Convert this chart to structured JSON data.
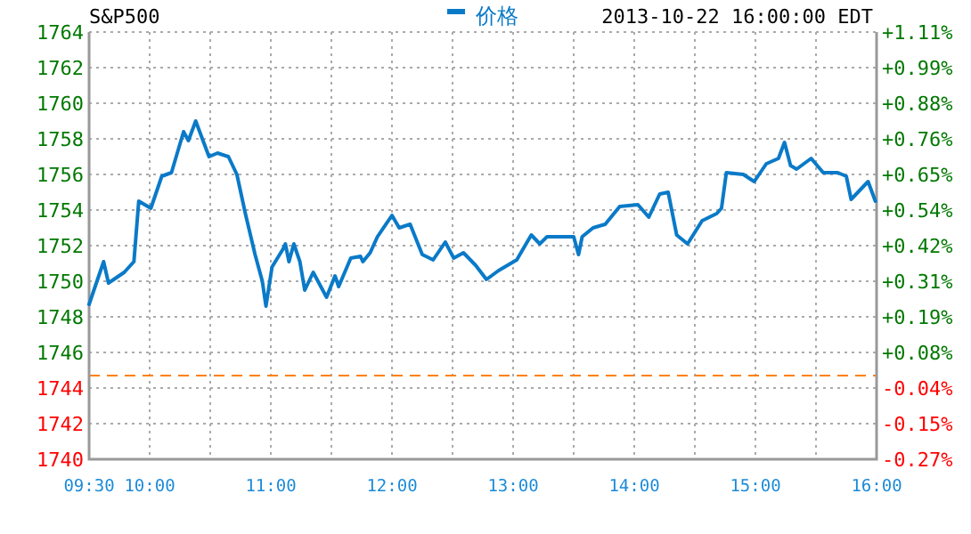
{
  "chart_data": {
    "type": "line",
    "title": "S&P500",
    "subtitle": "2013-10-22 16:00:00 EDT",
    "x": [
      9.5,
      9.62,
      9.66,
      9.79,
      9.87,
      9.91,
      10.01,
      10.1,
      10.18,
      10.28,
      10.32,
      10.38,
      10.49,
      10.56,
      10.65,
      10.72,
      10.79,
      10.87,
      10.93,
      10.96,
      11.01,
      11.1,
      11.12,
      11.15,
      11.19,
      11.24,
      11.28,
      11.35,
      11.46,
      11.53,
      11.56,
      11.66,
      11.74,
      11.76,
      11.82,
      11.88,
      12.0,
      12.06,
      12.15,
      12.25,
      12.34,
      12.44,
      12.51,
      12.59,
      12.69,
      12.78,
      12.88,
      13.03,
      13.15,
      13.22,
      13.28,
      13.5,
      13.54,
      13.57,
      13.66,
      13.76,
      13.88,
      14.03,
      14.12,
      14.21,
      14.28,
      14.35,
      14.44,
      14.56,
      14.68,
      14.72,
      14.76,
      14.9,
      14.99,
      15.09,
      15.19,
      15.24,
      15.29,
      15.34,
      15.46,
      15.56,
      15.68,
      15.75,
      15.79,
      15.93,
      15.99
    ],
    "series": [
      {
        "name": "价格",
        "color": "#0a7ac8",
        "values": [
          1748.7,
          1751.1,
          1749.9,
          1750.5,
          1751.1,
          1754.5,
          1754.1,
          1755.9,
          1756.1,
          1758.4,
          1757.9,
          1759.0,
          1757.0,
          1757.2,
          1757.0,
          1756.0,
          1753.8,
          1751.5,
          1750.0,
          1748.6,
          1750.8,
          1751.8,
          1752.1,
          1751.1,
          1752.1,
          1751.1,
          1749.5,
          1750.5,
          1749.1,
          1750.3,
          1749.7,
          1751.3,
          1751.4,
          1751.1,
          1751.6,
          1752.5,
          1753.7,
          1753.0,
          1753.2,
          1751.5,
          1751.2,
          1752.2,
          1751.3,
          1751.6,
          1750.9,
          1750.1,
          1750.6,
          1751.2,
          1752.6,
          1752.1,
          1752.5,
          1752.5,
          1751.5,
          1752.5,
          1753.0,
          1753.2,
          1754.2,
          1754.3,
          1753.6,
          1754.9,
          1755.0,
          1752.6,
          1752.1,
          1753.4,
          1753.8,
          1754.1,
          1756.1,
          1756.0,
          1755.6,
          1756.6,
          1756.9,
          1757.8,
          1756.5,
          1756.3,
          1756.9,
          1756.1,
          1756.1,
          1755.9,
          1754.6,
          1755.6,
          1754.5
        ]
      }
    ],
    "xlim": [
      9.5,
      16
    ],
    "xticks": [
      {
        "value": 9.5,
        "label": "09:30"
      },
      {
        "value": 10,
        "label": "10:00"
      },
      {
        "value": 10.5,
        "label": null
      },
      {
        "value": 11,
        "label": "11:00"
      },
      {
        "value": 11.5,
        "label": null
      },
      {
        "value": 12,
        "label": "12:00"
      },
      {
        "value": 12.5,
        "label": null
      },
      {
        "value": 13,
        "label": "13:00"
      },
      {
        "value": 13.5,
        "label": null
      },
      {
        "value": 14,
        "label": "14:00"
      },
      {
        "value": 14.5,
        "label": null
      },
      {
        "value": 15,
        "label": "15:00"
      },
      {
        "value": 15.5,
        "label": null
      },
      {
        "value": 16,
        "label": "16:00"
      }
    ],
    "ylim": [
      1740,
      1764
    ],
    "yticks": [
      1740,
      1742,
      1744,
      1746,
      1748,
      1750,
      1752,
      1754,
      1756,
      1758,
      1760,
      1762,
      1764
    ],
    "y2lim": [
      -0.267,
      1.109
    ],
    "y2ticks": [
      {
        "value": -0.267,
        "label": "-0.27%"
      },
      {
        "value": -0.152,
        "label": "-0.15%"
      },
      {
        "value": -0.038,
        "label": "-0.04%"
      },
      {
        "value": 0.077,
        "label": "+0.08%"
      },
      {
        "value": 0.191,
        "label": "+0.19%"
      },
      {
        "value": 0.306,
        "label": "+0.31%"
      },
      {
        "value": 0.421,
        "label": "+0.42%"
      },
      {
        "value": 0.536,
        "label": "+0.54%"
      },
      {
        "value": 0.65,
        "label": "+0.65%"
      },
      {
        "value": 0.765,
        "label": "+0.76%"
      },
      {
        "value": 0.88,
        "label": "+0.88%"
      },
      {
        "value": 0.994,
        "label": "+0.99%"
      },
      {
        "value": 1.109,
        "label": "+1.11%"
      }
    ],
    "ref_lines": [
      {
        "axis": "y",
        "value": 1744.7,
        "color": "#ff8000",
        "line_style": "dashed"
      }
    ],
    "grid": true,
    "legend": "top"
  }
}
